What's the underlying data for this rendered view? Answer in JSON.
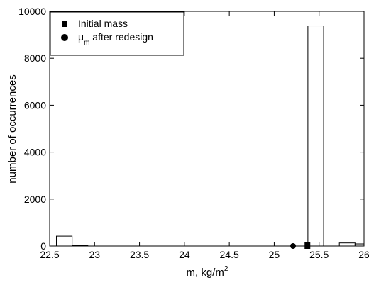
{
  "chart_data": {
    "type": "bar",
    "xlabel": "m, kg/m",
    "xlabel_sup": "2",
    "ylabel": "number of occurrences",
    "xlim": [
      22.5,
      26
    ],
    "ylim": [
      0,
      10000
    ],
    "xticks": [
      "22.5",
      "23",
      "23.5",
      "24",
      "24.5",
      "25",
      "25.5",
      "26"
    ],
    "yticks": [
      "0",
      "2000",
      "4000",
      "6000",
      "8000",
      "10000"
    ],
    "bins": [
      {
        "x0": 22.575,
        "x1": 22.75,
        "value": 420
      },
      {
        "x0": 22.75,
        "x1": 22.925,
        "value": 25
      },
      {
        "x0": 25.375,
        "x1": 25.55,
        "value": 9380
      },
      {
        "x0": 25.55,
        "x1": 25.725,
        "value": 0
      },
      {
        "x0": 25.725,
        "x1": 25.9,
        "value": 130
      },
      {
        "x0": 25.9,
        "x1": 26.0,
        "value": 90
      }
    ],
    "markers": [
      {
        "label": "Initial mass",
        "shape": "square",
        "x": 25.37,
        "y": 0
      },
      {
        "label": "μ",
        "label_sub": "m",
        "label_after": " after redesign",
        "shape": "circle",
        "x": 25.21,
        "y": 0
      }
    ],
    "legend": {
      "position": "top-left",
      "entries": [
        {
          "shape": "square",
          "text": "Initial mass"
        },
        {
          "shape": "circle",
          "text": "μ",
          "sub": "m",
          "after": " after redesign"
        }
      ]
    },
    "grid": false,
    "colors": {
      "bar_fill": "#ffffff",
      "bar_stroke": "#000000",
      "marker": "#000000"
    }
  }
}
